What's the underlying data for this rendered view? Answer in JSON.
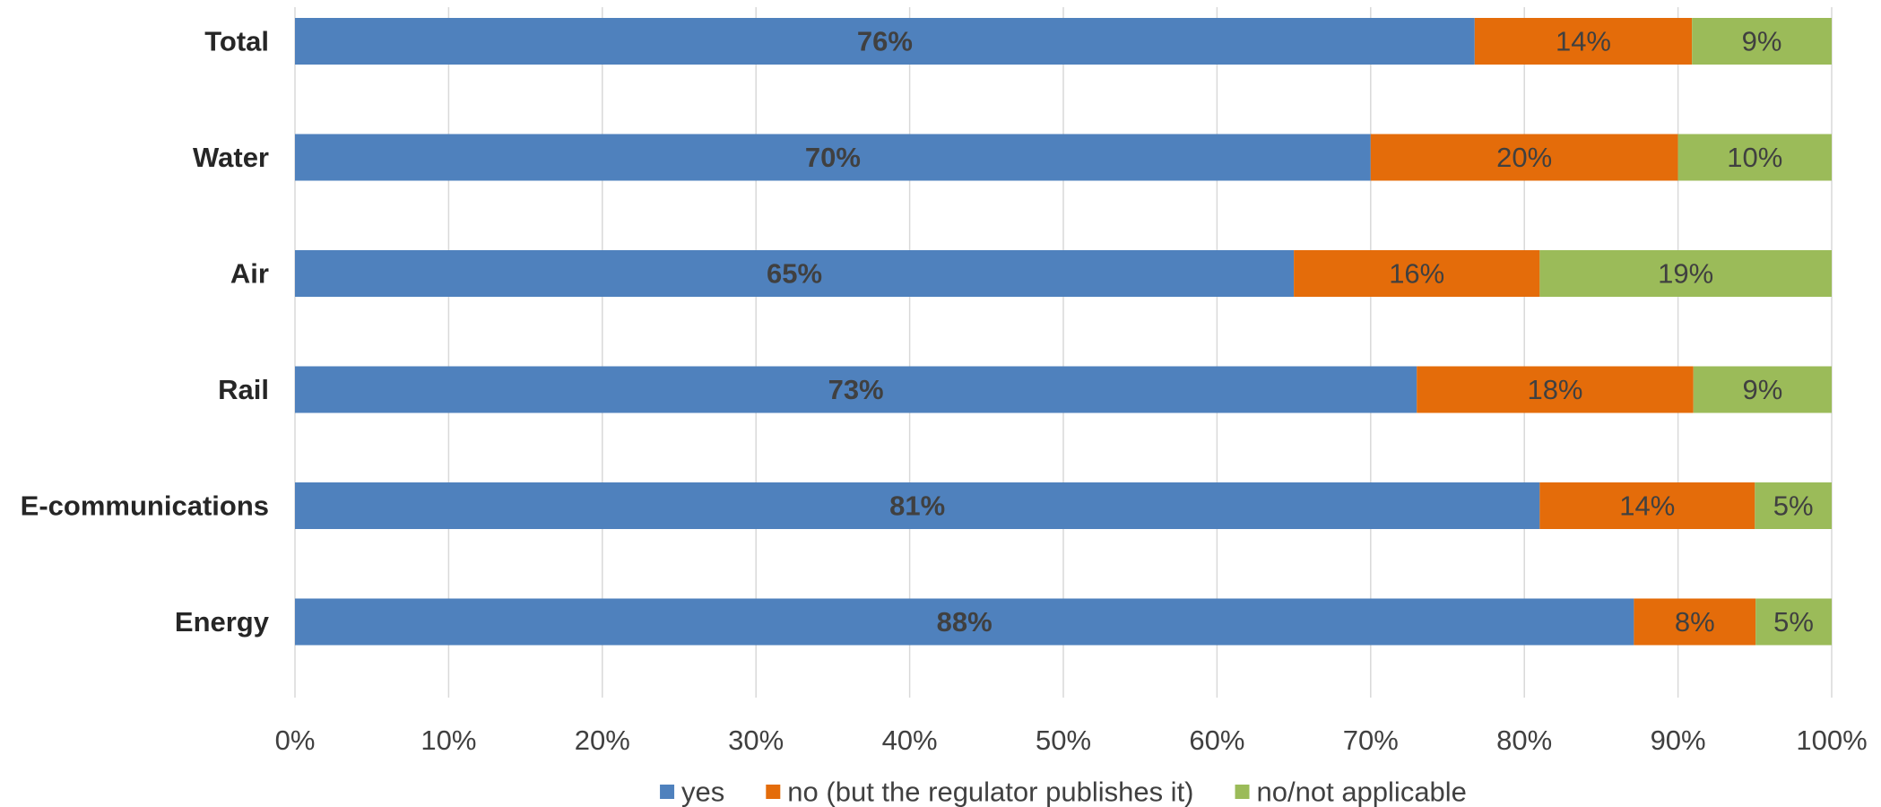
{
  "chart_data": {
    "type": "bar",
    "orientation": "horizontal",
    "stacked": "percent",
    "categories": [
      "Total",
      "Water",
      "Air",
      "Rail",
      "E-communications",
      "Energy"
    ],
    "series": [
      {
        "name": "yes",
        "color": "#4f81bd",
        "values": [
          76,
          70,
          65,
          73,
          81,
          88
        ],
        "labels": [
          "76%",
          "70%",
          "65%",
          "73%",
          "81%",
          "88%"
        ],
        "label_bold": true
      },
      {
        "name": "no (but the regulator publishes it)",
        "color": "#e46c0a",
        "values": [
          14,
          20,
          16,
          18,
          14,
          8
        ],
        "labels": [
          "14%",
          "20%",
          "16%",
          "18%",
          "14%",
          "8%"
        ],
        "label_bold": false
      },
      {
        "name": "no/not applicable",
        "color": "#9bbb59",
        "values": [
          9,
          10,
          19,
          9,
          5,
          5
        ],
        "labels": [
          "9%",
          "10%",
          "19%",
          "9%",
          "5%",
          "5%"
        ],
        "label_bold": false
      }
    ],
    "x_ticks": [
      "0%",
      "10%",
      "20%",
      "30%",
      "40%",
      "50%",
      "60%",
      "70%",
      "80%",
      "90%",
      "100%"
    ],
    "xlim": [
      0,
      100
    ],
    "grid": true,
    "legend_position": "bottom",
    "title": "",
    "xlabel": "",
    "ylabel": ""
  }
}
